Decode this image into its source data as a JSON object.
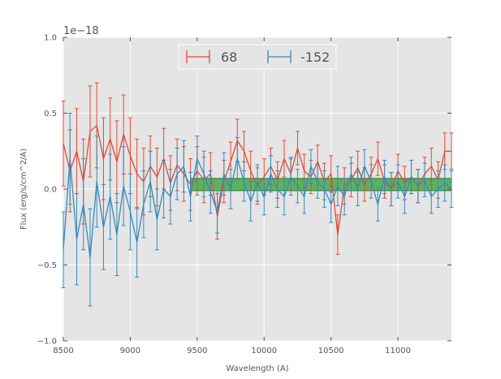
{
  "chart_data": {
    "type": "line",
    "title": "",
    "xlabel": "Wavelength (A)",
    "ylabel": "Flux (erg/s/cm^2/A)",
    "offset_label": "1e−18",
    "xlim": [
      8500,
      11400
    ],
    "ylim": [
      -1.0,
      1.0
    ],
    "x_ticks": [
      8500,
      9000,
      9500,
      10000,
      10500,
      11000
    ],
    "x_tick_labels": [
      "8500",
      "9000",
      "9500",
      "10000",
      "10500",
      "11000"
    ],
    "y_ticks": [
      -1.0,
      -0.5,
      0.0,
      0.5,
      1.0
    ],
    "y_tick_labels": [
      "−1.0",
      "−0.5",
      "0.0",
      "0.5",
      "1.0"
    ],
    "grid": true,
    "legend_position": "top-center",
    "colors": {
      "series_68": "#e24a33",
      "series_neg152": "#348abd",
      "band": "#2ca02c",
      "axes_bg": "#e5e5e5",
      "grid": "#ffffff"
    },
    "band": {
      "label": "green shaded band",
      "x_start": 9450,
      "x_end": 11400,
      "y_low": -0.01,
      "y_high": 0.07
    },
    "series": [
      {
        "name": "68",
        "color": "#e24a33",
        "x": [
          8500,
          8550,
          8600,
          8650,
          8700,
          8750,
          8800,
          8850,
          8900,
          8950,
          9000,
          9050,
          9100,
          9150,
          9200,
          9250,
          9300,
          9350,
          9400,
          9450,
          9500,
          9550,
          9600,
          9650,
          9700,
          9750,
          9800,
          9850,
          9900,
          9950,
          10000,
          10050,
          10100,
          10150,
          10200,
          10250,
          10300,
          10350,
          10400,
          10450,
          10500,
          10550,
          10600,
          10650,
          10700,
          10750,
          10800,
          10850,
          10900,
          10950,
          11000,
          11050,
          11100,
          11150,
          11200,
          11250,
          11300,
          11350,
          11400
        ],
        "y": [
          0.3,
          0.12,
          0.25,
          0.05,
          0.38,
          0.42,
          0.2,
          0.33,
          0.18,
          0.36,
          0.22,
          0.1,
          0.05,
          0.15,
          0.08,
          0.2,
          0.04,
          0.16,
          0.1,
          0.03,
          0.12,
          0.06,
          0.1,
          -0.18,
          0.05,
          0.18,
          0.32,
          0.25,
          0.12,
          0.02,
          0.08,
          0.15,
          0.06,
          0.2,
          0.1,
          0.27,
          0.12,
          0.08,
          0.18,
          0.05,
          0.1,
          -0.3,
          0.02,
          0.06,
          0.14,
          0.03,
          0.1,
          0.2,
          0.05,
          0.0,
          0.12,
          0.04,
          0.08,
          0.02,
          0.1,
          0.15,
          0.06,
          0.25,
          0.25
        ],
        "err": [
          0.28,
          0.27,
          0.28,
          0.28,
          0.3,
          0.28,
          0.27,
          0.27,
          0.27,
          0.26,
          0.25,
          0.23,
          0.22,
          0.2,
          0.19,
          0.2,
          0.18,
          0.17,
          0.18,
          0.17,
          0.16,
          0.15,
          0.14,
          0.15,
          0.14,
          0.13,
          0.14,
          0.13,
          0.13,
          0.12,
          0.12,
          0.12,
          0.12,
          0.12,
          0.11,
          0.11,
          0.11,
          0.11,
          0.11,
          0.12,
          0.12,
          0.13,
          0.12,
          0.11,
          0.11,
          0.11,
          0.11,
          0.11,
          0.11,
          0.11,
          0.11,
          0.11,
          0.11,
          0.11,
          0.11,
          0.12,
          0.12,
          0.12,
          0.12
        ]
      },
      {
        "name": "-152",
        "color": "#348abd",
        "x": [
          8500,
          8550,
          8600,
          8650,
          8700,
          8750,
          8800,
          8850,
          8900,
          8950,
          9000,
          9050,
          9100,
          9150,
          9200,
          9250,
          9300,
          9350,
          9400,
          9450,
          9500,
          9550,
          9600,
          9650,
          9700,
          9750,
          9800,
          9850,
          9900,
          9950,
          10000,
          10050,
          10100,
          10150,
          10200,
          10250,
          10300,
          10350,
          10400,
          10450,
          10500,
          10550,
          10600,
          10650,
          10700,
          10750,
          10800,
          10850,
          10900,
          10950,
          11000,
          11050,
          11100,
          11150,
          11200,
          11250,
          11300,
          11350,
          11400
        ],
        "y": [
          -0.4,
          0.2,
          -0.33,
          -0.1,
          -0.45,
          0.05,
          -0.25,
          -0.05,
          -0.3,
          0.02,
          -0.15,
          -0.35,
          -0.1,
          0.05,
          -0.2,
          0.0,
          -0.05,
          0.1,
          0.15,
          -0.05,
          0.2,
          0.1,
          -0.02,
          -0.15,
          0.1,
          0.0,
          0.2,
          0.05,
          -0.08,
          0.04,
          -0.05,
          0.1,
          0.0,
          -0.05,
          0.08,
          0.02,
          -0.05,
          0.15,
          0.05,
          0.0,
          -0.1,
          0.02,
          -0.05,
          0.1,
          0.0,
          0.15,
          0.05,
          -0.1,
          0.08,
          0.0,
          0.05,
          -0.05,
          0.08,
          0.02,
          0.06,
          -0.05,
          0.0,
          0.04,
          0.0
        ],
        "err": [
          0.25,
          0.3,
          0.3,
          0.3,
          0.32,
          0.3,
          0.28,
          0.28,
          0.27,
          0.26,
          0.25,
          0.23,
          0.22,
          0.2,
          0.2,
          0.19,
          0.18,
          0.17,
          0.17,
          0.16,
          0.15,
          0.15,
          0.14,
          0.14,
          0.14,
          0.13,
          0.14,
          0.13,
          0.13,
          0.12,
          0.12,
          0.12,
          0.12,
          0.12,
          0.12,
          0.11,
          0.11,
          0.11,
          0.11,
          0.12,
          0.12,
          0.13,
          0.12,
          0.11,
          0.11,
          0.11,
          0.11,
          0.11,
          0.11,
          0.11,
          0.11,
          0.11,
          0.11,
          0.11,
          0.11,
          0.11,
          0.12,
          0.12,
          0.12
        ]
      }
    ]
  }
}
